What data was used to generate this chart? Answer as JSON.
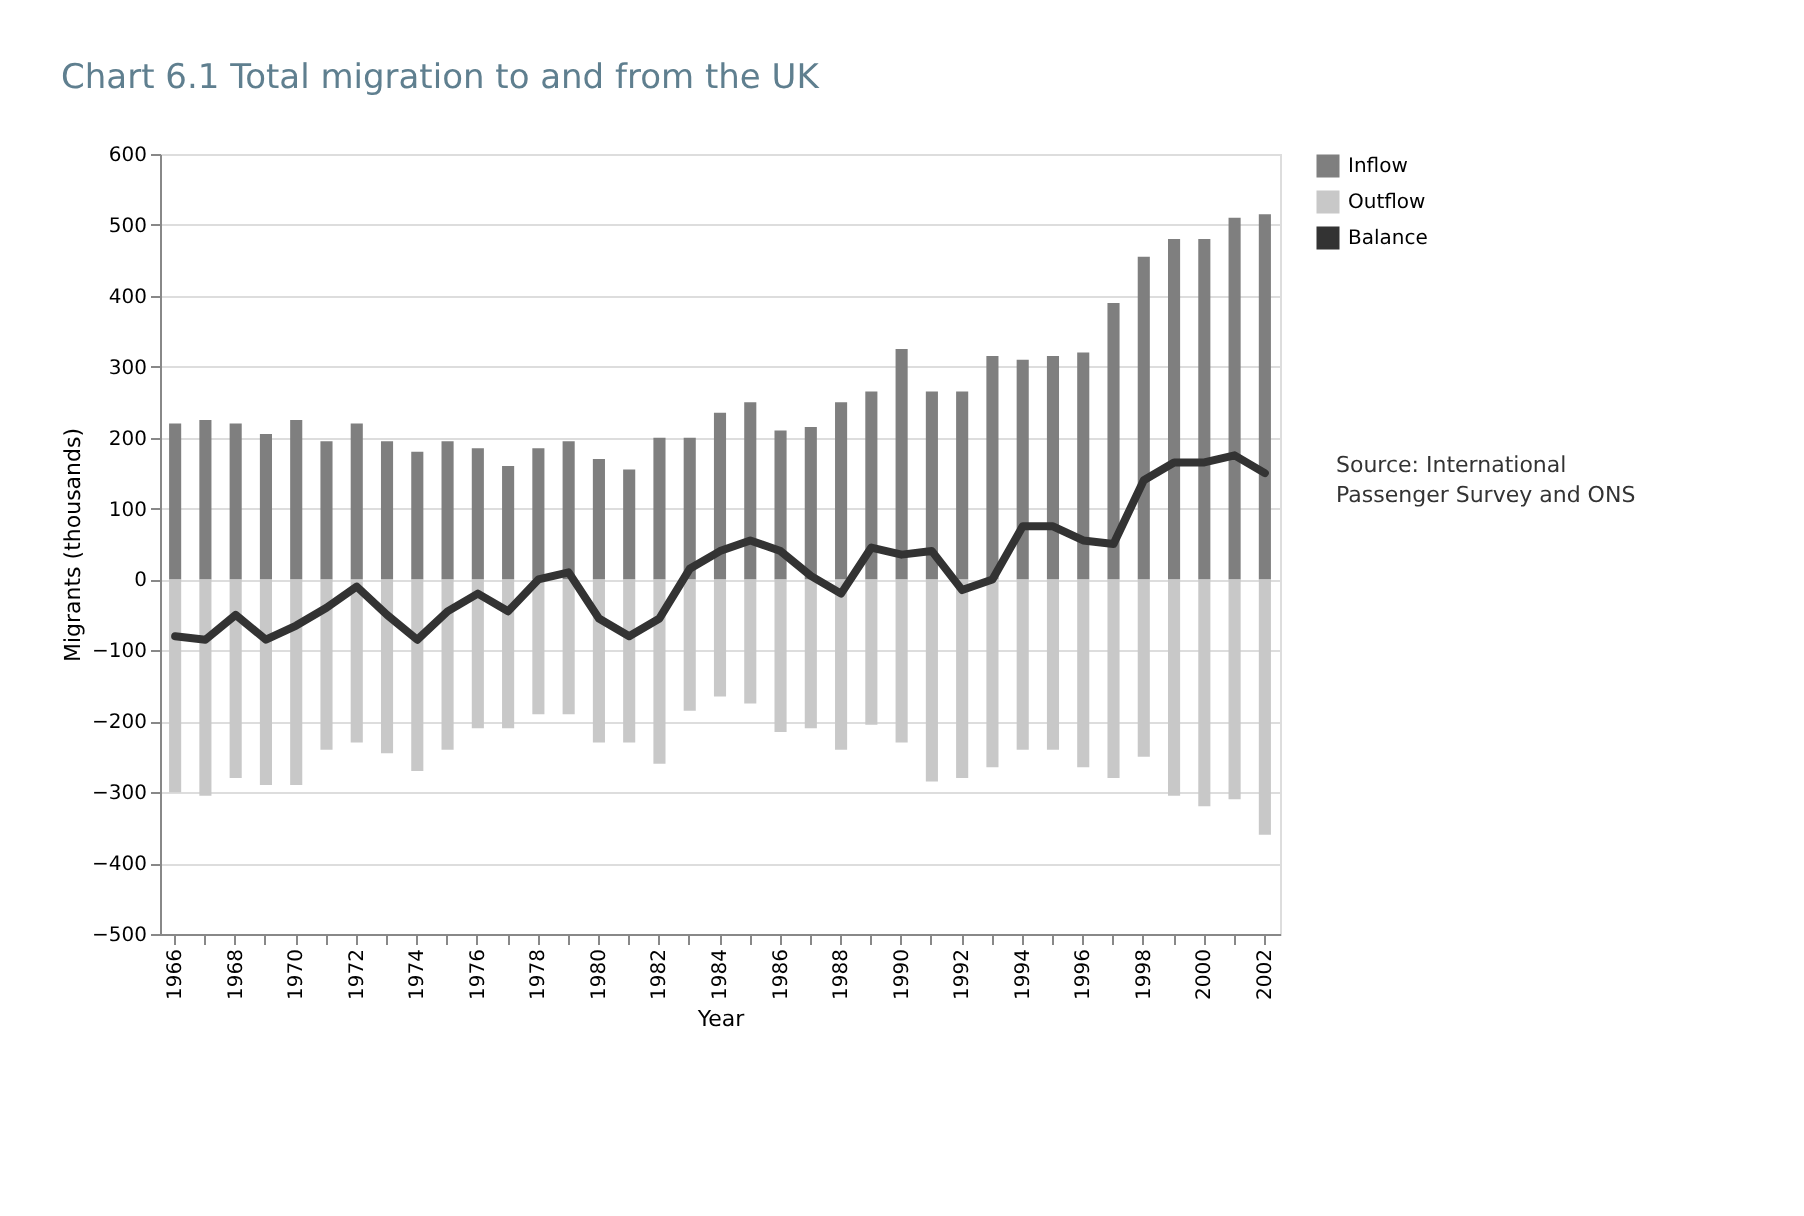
{
  "chart_data": {
    "type": "bar",
    "title": "Chart 6.1 Total migration to and from the UK",
    "xlabel": "Year",
    "ylabel": "Migrants (thousands)",
    "categories": [
      "1966",
      null,
      "1968",
      null,
      "1970",
      null,
      "1972",
      null,
      "1974",
      null,
      "1976",
      null,
      "1978",
      null,
      "1980",
      null,
      "1982",
      null,
      "1984",
      null,
      "1986",
      null,
      "1988",
      null,
      "1990",
      null,
      "1992",
      null,
      "1994",
      null,
      "1996",
      null,
      "1998",
      null,
      "2000",
      null,
      "2002"
    ],
    "series": [
      {
        "name": "Inflow",
        "color": "#7f7f7f",
        "values": [
          220,
          225,
          220,
          205,
          225,
          195,
          220,
          195,
          180,
          195,
          185,
          160,
          185,
          195,
          170,
          155,
          200,
          200,
          235,
          250,
          210,
          215,
          250,
          265,
          325,
          265,
          265,
          315,
          310,
          315,
          320,
          390,
          455,
          480,
          480,
          510,
          515
        ]
      },
      {
        "name": "Outflow",
        "color": "#c8c8c8",
        "values": [
          -300,
          -305,
          -280,
          -290,
          -290,
          -240,
          -230,
          -245,
          -270,
          -240,
          -210,
          -210,
          -190,
          -190,
          -230,
          -230,
          -260,
          -185,
          -165,
          -175,
          -215,
          -210,
          -240,
          -205,
          -230,
          -285,
          -280,
          -265,
          -240,
          -240,
          -265,
          -280,
          -250,
          -305,
          -320,
          -310,
          -360
        ]
      },
      {
        "name": "Balance",
        "type": "line",
        "color": "#333333",
        "values": [
          -80,
          -85,
          -50,
          -85,
          -65,
          -40,
          -10,
          -50,
          -85,
          -45,
          -20,
          -45,
          0,
          10,
          -55,
          -80,
          -55,
          15,
          40,
          55,
          40,
          5,
          -20,
          45,
          35,
          40,
          -15,
          0,
          75,
          75,
          55,
          50,
          140,
          165,
          165,
          175,
          150
        ]
      }
    ],
    "ylim": [
      -500,
      600
    ],
    "yticks": [
      -500,
      -400,
      -300,
      -200,
      -100,
      0,
      100,
      200,
      300,
      400,
      500,
      600
    ],
    "stacked": true,
    "grid": "y",
    "legend": "right",
    "marker": "none",
    "line_style": "solid",
    "annotations": [
      "Source: International Passenger Survey and ONS"
    ]
  }
}
